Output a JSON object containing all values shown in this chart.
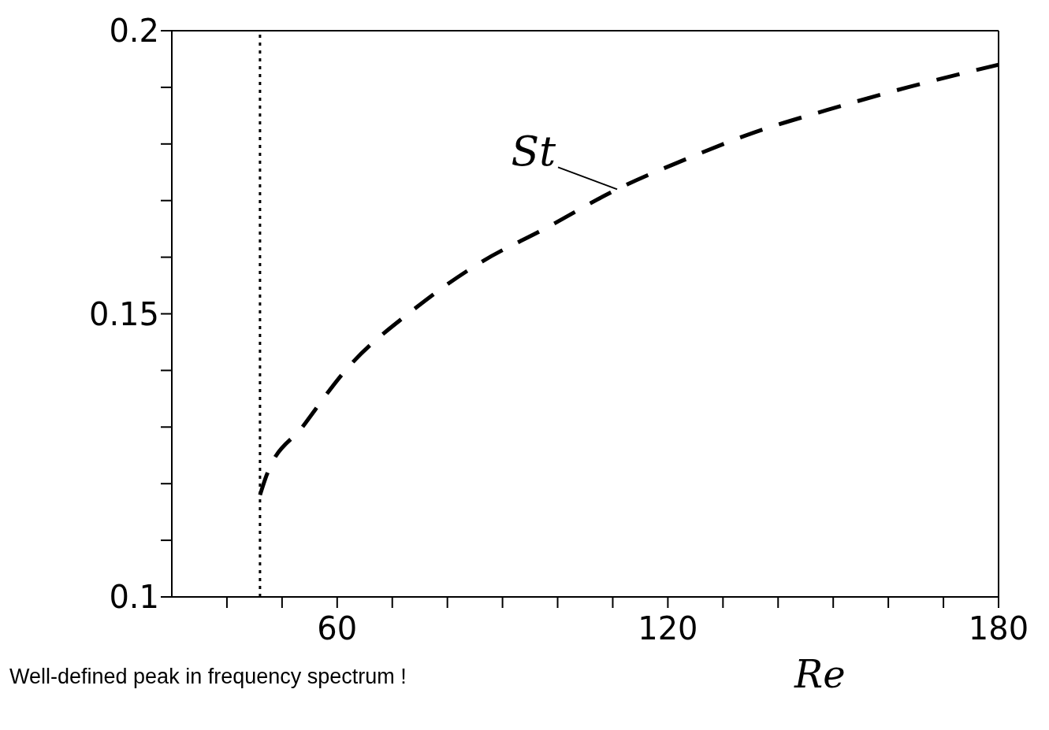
{
  "chart_data": {
    "type": "line",
    "xlabel": "Re",
    "x": [
      46,
      47.2,
      53.7,
      61.5,
      74.2,
      85.9,
      97.6,
      110.8,
      122.5,
      135.6,
      148.9,
      163.5,
      180
    ],
    "series": [
      {
        "color": "#000000",
        "values": [
          0.118,
          0.1215,
          0.13,
          0.14,
          0.151,
          0.159,
          0.165,
          0.172,
          0.177,
          0.182,
          0.186,
          0.19,
          0.194
        ],
        "line_style": "dashed"
      }
    ],
    "xlim": [
      30,
      180
    ],
    "xticks": [
      {
        "value": 40,
        "label": null
      },
      {
        "value": 50,
        "label": null
      },
      60,
      {
        "value": 70,
        "label": null
      },
      {
        "value": 80,
        "label": null
      },
      {
        "value": 90,
        "label": null
      },
      {
        "value": 100,
        "label": null
      },
      {
        "value": 110,
        "label": null
      },
      120,
      {
        "value": 130,
        "label": null
      },
      {
        "value": 140,
        "label": null
      },
      {
        "value": 150,
        "label": null
      },
      {
        "value": 160,
        "label": null
      },
      {
        "value": 170,
        "label": null
      },
      180
    ],
    "ylim": [
      0.1,
      0.2
    ],
    "yticks": [
      0.1,
      {
        "value": 0.11,
        "label": null
      },
      {
        "value": 0.12,
        "label": null
      },
      {
        "value": 0.13,
        "label": null
      },
      {
        "value": 0.14,
        "label": null
      },
      0.15,
      {
        "value": 0.16,
        "label": null
      },
      {
        "value": 0.17,
        "label": null
      },
      {
        "value": 0.18,
        "label": null
      },
      {
        "value": 0.19,
        "label": null
      },
      0.2
    ],
    "marker": "none",
    "ref_lines": [
      {
        "axis": "x",
        "value": 46,
        "label": null,
        "line_style": "dotted",
        "color": "#000000"
      }
    ],
    "annotations": [
      {
        "text": "St",
        "x": 110.8,
        "y": 0.172
      },
      "Well-defined peak in frequency spectrum !"
    ]
  }
}
